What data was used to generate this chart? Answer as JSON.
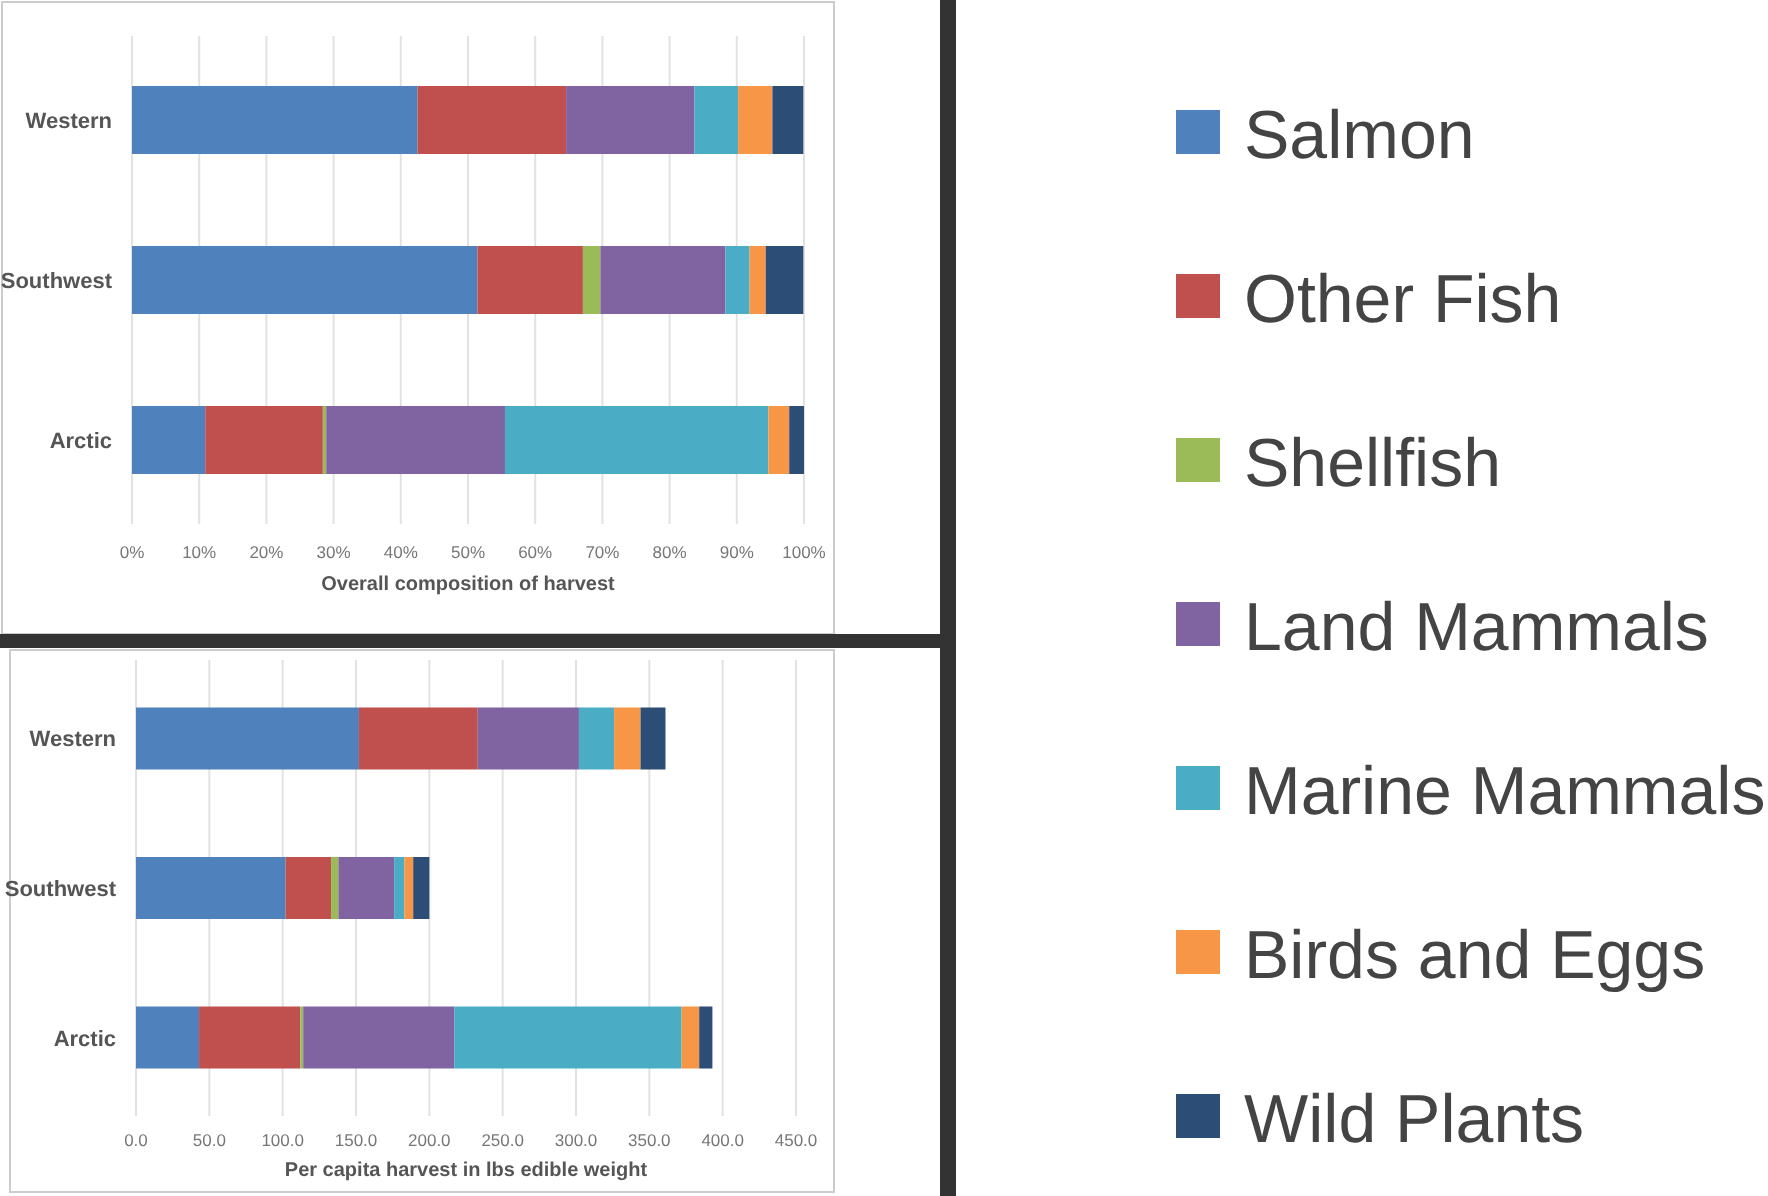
{
  "chart_data": [
    {
      "type": "bar",
      "orientation": "horizontal",
      "stacked": true,
      "xlabel": "Overall composition of harvest",
      "categories": [
        "Western",
        "Southwest",
        "Arctic"
      ],
      "xlim": [
        0,
        100
      ],
      "xticks": [
        {
          "value": 0,
          "label": "0%"
        },
        {
          "value": 10,
          "label": "10%"
        },
        {
          "value": 20,
          "label": "20%"
        },
        {
          "value": 30,
          "label": "30%"
        },
        {
          "value": 40,
          "label": "40%"
        },
        {
          "value": 50,
          "label": "50%"
        },
        {
          "value": 60,
          "label": "60%"
        },
        {
          "value": 70,
          "label": "70%"
        },
        {
          "value": 80,
          "label": "80%"
        },
        {
          "value": 90,
          "label": "90%"
        },
        {
          "value": 100,
          "label": "100%"
        }
      ],
      "grid": "x",
      "legend": "right",
      "series": [
        {
          "name": "Salmon",
          "color": "#4f81bd",
          "values": [
            42.5,
            51.4,
            10.9
          ]
        },
        {
          "name": "Other Fish",
          "color": "#c0504d",
          "values": [
            22.1,
            15.7,
            17.5
          ]
        },
        {
          "name": "Shellfish",
          "color": "#9bbb59",
          "values": [
            0,
            2.6,
            0.5
          ]
        },
        {
          "name": "Land Mammals",
          "color": "#8064a2",
          "values": [
            19.1,
            18.6,
            26.6
          ]
        },
        {
          "name": "Marine Mammals",
          "color": "#4bacc6",
          "values": [
            6.5,
            3.6,
            39.2
          ]
        },
        {
          "name": "Birds and Eggs",
          "color": "#f79646",
          "values": [
            5.1,
            2.4,
            3.1
          ]
        },
        {
          "name": "Wild Plants",
          "color": "#2c4d75",
          "values": [
            4.6,
            5.6,
            2.2
          ]
        }
      ]
    },
    {
      "type": "bar",
      "orientation": "horizontal",
      "stacked": true,
      "xlabel": "Per capita harvest in lbs edible weight",
      "categories": [
        "Western",
        "Southwest",
        "Arctic"
      ],
      "xlim": [
        0,
        450
      ],
      "xticks": [
        {
          "value": 0,
          "label": "0.0"
        },
        {
          "value": 50,
          "label": "50.0"
        },
        {
          "value": 100,
          "label": "100.0"
        },
        {
          "value": 150,
          "label": "150.0"
        },
        {
          "value": 200,
          "label": "200.0"
        },
        {
          "value": 250,
          "label": "250.0"
        },
        {
          "value": 300,
          "label": "300.0"
        },
        {
          "value": 350,
          "label": "350.0"
        },
        {
          "value": 400,
          "label": "400.0"
        },
        {
          "value": 450,
          "label": "450.0"
        }
      ],
      "grid": "x",
      "series": [
        {
          "color": "#4f81bd",
          "values": [
            152,
            102,
            43
          ]
        },
        {
          "color": "#c0504d",
          "values": [
            81,
            31,
            69
          ]
        },
        {
          "color": "#9bbb59",
          "values": [
            0,
            5,
            2
          ]
        },
        {
          "color": "#8064a2",
          "values": [
            69,
            38,
            103
          ]
        },
        {
          "color": "#4bacc6",
          "values": [
            24,
            7,
            155
          ]
        },
        {
          "color": "#f79646",
          "values": [
            18,
            6,
            12
          ]
        },
        {
          "color": "#2c4d75",
          "values": [
            17,
            11,
            9
          ]
        }
      ]
    }
  ]
}
